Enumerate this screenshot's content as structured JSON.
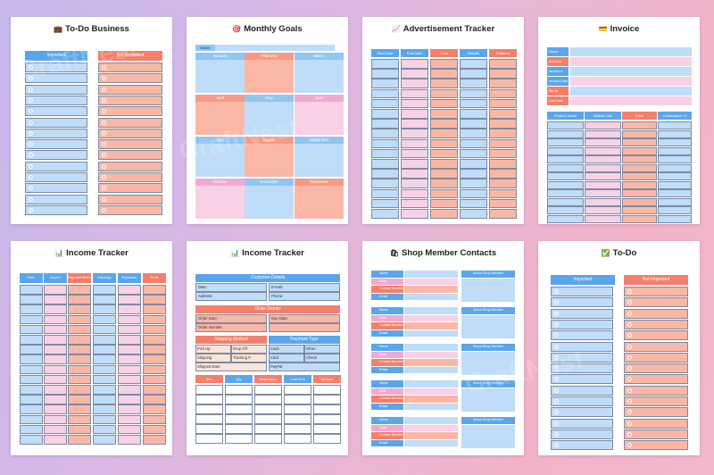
{
  "pages": [
    {
      "title": "To-Do Business",
      "icon": "💼",
      "col1": "Important",
      "col2": "Not Important"
    },
    {
      "title": "Monthly Goals",
      "icon": "🎯",
      "header": "Month",
      "months": [
        "January",
        "February",
        "March",
        "April",
        "May",
        "June",
        "July",
        "August",
        "September",
        "October",
        "November",
        "December"
      ]
    },
    {
      "title": "Advertisement Tracker",
      "icon": "📈",
      "columns": [
        "Start Date",
        "End Date",
        "Cost",
        "Results",
        "Platform"
      ]
    },
    {
      "title": "Invoice",
      "icon": "💳",
      "fields": [
        "Name",
        "Address",
        "Invoice #",
        "Invoice Date",
        "Bill To",
        "Due Date"
      ],
      "columns": [
        "Product Name",
        "Affiliate Link",
        "Price",
        "Commission %"
      ]
    },
    {
      "title": "Income Tracker",
      "icon": "📊",
      "columns": [
        "Date",
        "Source",
        "Payment Method",
        "Earnings",
        "Expenses",
        "Profit"
      ]
    },
    {
      "title": "Income Tracker",
      "icon": "📊",
      "customer_header": "Customer Details",
      "customer_fields": [
        "Date:",
        "E-mail:",
        "Address:",
        "Phone:"
      ],
      "order_header": "Order Details",
      "order_fields": [
        "Order Date:",
        "Due Date:",
        "Order Number:"
      ],
      "shipping_header": "Shipping Method",
      "shipping_fields": [
        "Pick Up",
        "Drop Off",
        "Shipping",
        "Tracking #:",
        "Shipped Date:"
      ],
      "payment_header": "Payment Type",
      "payment_fields": [
        "Cash",
        "Other",
        "Card",
        "Check",
        "PayPal"
      ],
      "table_columns": [
        "Item",
        "Qty",
        "Description",
        "Cost Item",
        "Amount"
      ]
    },
    {
      "title": "Shop Member Contacts",
      "icon": "🛍",
      "labels": [
        "Name",
        "Role",
        "Contact Number",
        "Email"
      ],
      "about": "About Shop Member"
    },
    {
      "title": "To-Do",
      "icon": "✅",
      "col1": "Important",
      "col2": "Not Important"
    }
  ],
  "watermark": "CraftNest"
}
